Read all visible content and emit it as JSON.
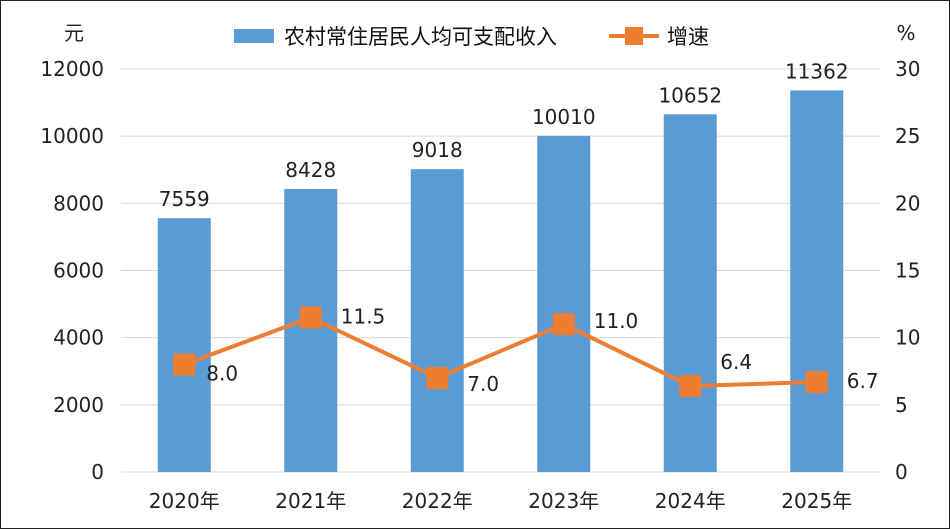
{
  "chart_data": {
    "type": "bar",
    "categories": [
      "2020年",
      "2021年",
      "2022年",
      "2023年",
      "2024年",
      "2025年"
    ],
    "series": [
      {
        "name": "农村常住居民人均可支配收入",
        "type": "bar",
        "axis": "left",
        "values": [
          7559,
          8428,
          9018,
          10010,
          10652,
          11362
        ],
        "labels": [
          "7559",
          "8428",
          "9018",
          "10010",
          "10652",
          "11362"
        ],
        "color": "#5b9bd5"
      },
      {
        "name": "增速",
        "type": "line",
        "axis": "right",
        "values": [
          8.0,
          11.5,
          7.0,
          11.0,
          6.4,
          6.7
        ],
        "labels": [
          "8.0",
          "11.5",
          "7.0",
          "11.0",
          "6.4",
          "6.7"
        ],
        "color": "#ed7d31"
      }
    ],
    "y_left": {
      "unit": "元",
      "range": [
        0,
        12000
      ],
      "ticks": [
        "0",
        "2000",
        "4000",
        "6000",
        "8000",
        "10000",
        "12000"
      ]
    },
    "y_right": {
      "unit": "%",
      "range": [
        0,
        30
      ],
      "ticks": [
        "0",
        "5",
        "10",
        "15",
        "20",
        "25",
        "30"
      ]
    },
    "grid": true,
    "legend_position": "top-center"
  }
}
